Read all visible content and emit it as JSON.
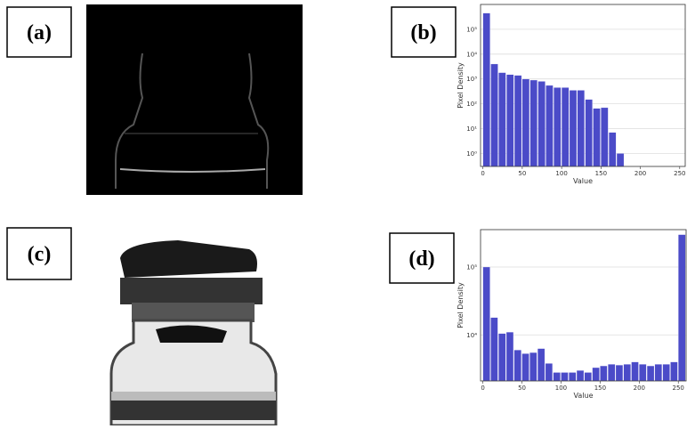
{
  "panels": [
    "(a)",
    "(b)",
    "(c)",
    "(d)"
  ],
  "chart_data": [
    {
      "type": "histogram",
      "xlabel": "Value",
      "ylabel": "Pixel Density",
      "color": "#4b4bc8",
      "log_y": true,
      "grid": true,
      "bins": [
        0,
        10,
        20,
        30,
        40,
        50,
        60,
        70,
        80,
        90,
        100,
        110,
        120,
        130,
        140,
        150,
        160,
        170,
        180,
        190,
        200,
        210,
        220,
        230,
        240,
        250,
        260
      ],
      "values": [
        450000,
        4000,
        1800,
        1500,
        1400,
        1000,
        900,
        800,
        550,
        450,
        450,
        350,
        350,
        150,
        65,
        70,
        7,
        1,
        0,
        0,
        0,
        0,
        0,
        0,
        0,
        0
      ],
      "xlim": [
        -3,
        257
      ],
      "xticks": [
        0,
        50,
        100,
        150,
        200,
        250
      ],
      "ylim": [
        0.3,
        1000000
      ],
      "yticks": [
        {
          "value": 1,
          "label": "10⁰"
        },
        {
          "value": 10,
          "label": "10¹"
        },
        {
          "value": 100,
          "label": "10²"
        },
        {
          "value": 1000,
          "label": "10³"
        },
        {
          "value": 10000,
          "label": "10⁴"
        },
        {
          "value": 100000,
          "label": "10⁵"
        }
      ]
    },
    {
      "type": "histogram",
      "xlabel": "Value",
      "ylabel": "Pixel Density",
      "color": "#4b4bc8",
      "log_y": true,
      "grid": true,
      "bins": [
        0,
        10,
        20,
        30,
        40,
        50,
        60,
        70,
        80,
        90,
        100,
        110,
        120,
        130,
        140,
        150,
        160,
        170,
        180,
        190,
        200,
        210,
        220,
        230,
        240,
        250,
        260
      ],
      "values": [
        100000,
        18000,
        10500,
        11000,
        6000,
        5300,
        5500,
        6300,
        3800,
        2800,
        2800,
        2800,
        3000,
        2800,
        3300,
        3500,
        3700,
        3600,
        3700,
        4000,
        3700,
        3500,
        3700,
        3700,
        4000,
        300000
      ],
      "xlim": [
        -3,
        260
      ],
      "xticks": [
        0,
        50,
        100,
        150,
        200,
        250
      ],
      "ylim": [
        2100,
        355000
      ],
      "yticks": [
        {
          "value": 10000,
          "label": "10⁴"
        },
        {
          "value": 100000,
          "label": "10⁵"
        }
      ]
    }
  ]
}
